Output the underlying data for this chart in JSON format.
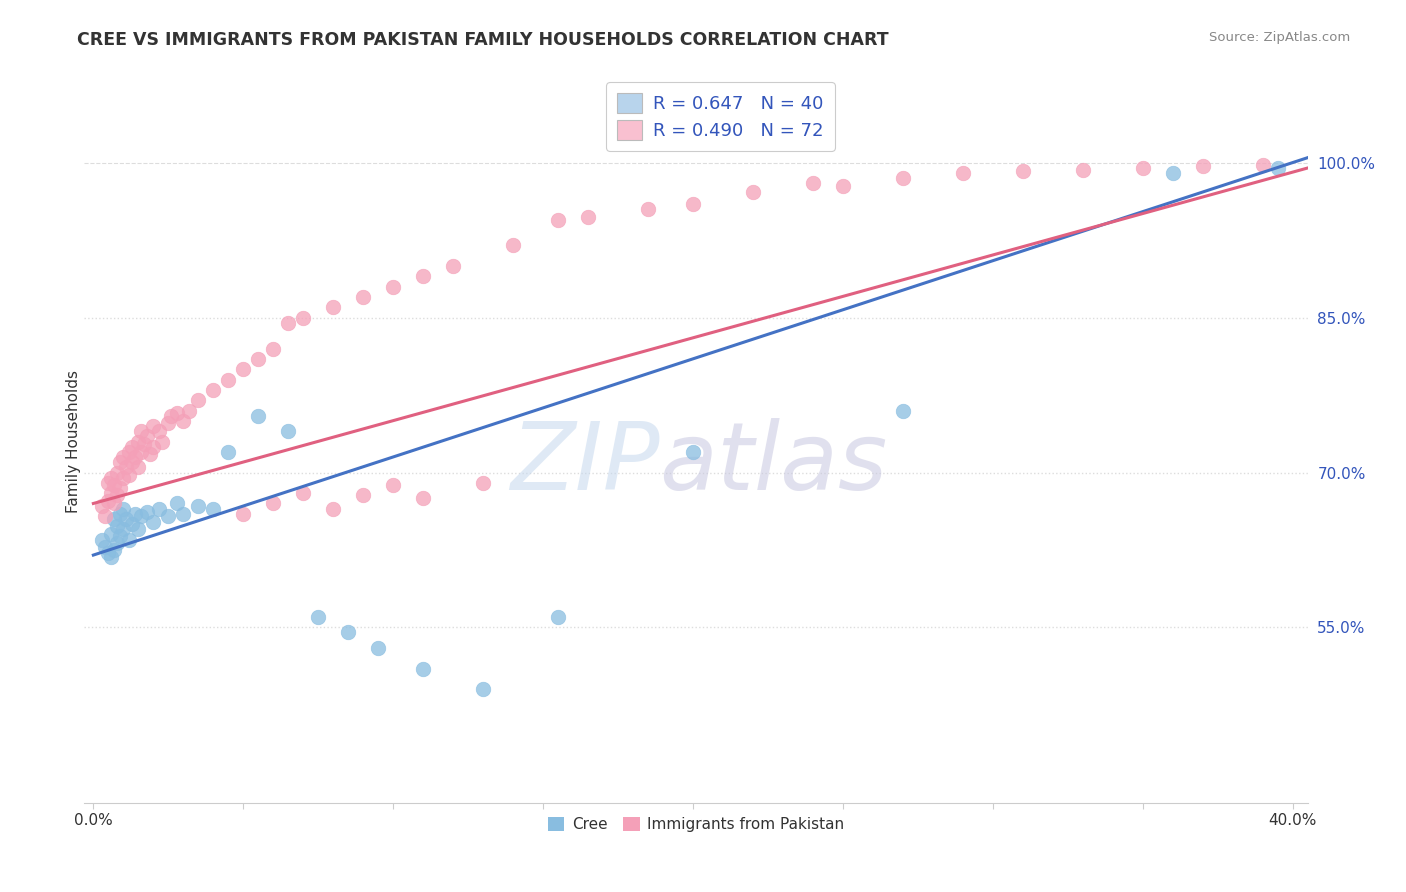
{
  "title": "CREE VS IMMIGRANTS FROM PAKISTAN FAMILY HOUSEHOLDS CORRELATION CHART",
  "source": "Source: ZipAtlas.com",
  "ylabel": "Family Households",
  "R_cree": 0.647,
  "N_cree": 40,
  "R_pak": 0.49,
  "N_pak": 72,
  "cree_color": "#89bde0",
  "pakistan_color": "#f4a0b8",
  "cree_line_color": "#4472c4",
  "pakistan_line_color": "#e06080",
  "legend_box_color_cree": "#b8d4ec",
  "legend_box_color_pak": "#f9c0d0",
  "watermark_zip_color": "#c5d8ee",
  "watermark_atlas_color": "#c8c8e0",
  "grid_color": "#dddddd",
  "title_color": "#333333",
  "source_color": "#888888",
  "axis_label_color": "#333333",
  "right_tick_color": "#3355bb",
  "bottom_tick_color": "#333333",
  "xlim": [
    -0.003,
    0.405
  ],
  "ylim": [
    0.38,
    1.08
  ],
  "ytick_vals": [
    1.0,
    0.85,
    0.7,
    0.55
  ],
  "ytick_labels": [
    "100.0%",
    "85.0%",
    "70.0%",
    "55.0%"
  ],
  "xtick_vals": [
    0.0,
    0.05,
    0.1,
    0.15,
    0.2,
    0.25,
    0.3,
    0.35,
    0.4
  ],
  "xtick_labels": [
    "0.0%",
    "",
    "",
    "",
    "",
    "",
    "",
    "",
    "40.0%"
  ],
  "cree_line_x0": 0.0,
  "cree_line_y0": 0.62,
  "cree_line_x1": 0.405,
  "cree_line_y1": 1.005,
  "pak_line_x0": 0.0,
  "pak_line_y0": 0.67,
  "pak_line_x1": 0.405,
  "pak_line_y1": 0.995,
  "cree_points_x": [
    0.003,
    0.004,
    0.005,
    0.006,
    0.006,
    0.007,
    0.007,
    0.008,
    0.008,
    0.009,
    0.009,
    0.01,
    0.01,
    0.011,
    0.012,
    0.013,
    0.014,
    0.015,
    0.016,
    0.018,
    0.02,
    0.022,
    0.025,
    0.028,
    0.03,
    0.035,
    0.04,
    0.045,
    0.055,
    0.065,
    0.075,
    0.085,
    0.095,
    0.11,
    0.13,
    0.155,
    0.2,
    0.27,
    0.36,
    0.395
  ],
  "cree_points_y": [
    0.635,
    0.628,
    0.622,
    0.618,
    0.64,
    0.625,
    0.655,
    0.632,
    0.648,
    0.638,
    0.66,
    0.645,
    0.665,
    0.655,
    0.635,
    0.65,
    0.66,
    0.645,
    0.658,
    0.662,
    0.652,
    0.665,
    0.658,
    0.67,
    0.66,
    0.668,
    0.665,
    0.72,
    0.755,
    0.74,
    0.56,
    0.545,
    0.53,
    0.51,
    0.49,
    0.56,
    0.72,
    0.76,
    0.99,
    0.995
  ],
  "pak_points_x": [
    0.003,
    0.004,
    0.005,
    0.005,
    0.006,
    0.006,
    0.007,
    0.007,
    0.008,
    0.008,
    0.009,
    0.009,
    0.01,
    0.01,
    0.011,
    0.012,
    0.012,
    0.013,
    0.013,
    0.014,
    0.015,
    0.015,
    0.016,
    0.016,
    0.017,
    0.018,
    0.019,
    0.02,
    0.02,
    0.022,
    0.023,
    0.025,
    0.026,
    0.028,
    0.03,
    0.032,
    0.035,
    0.04,
    0.045,
    0.05,
    0.055,
    0.06,
    0.065,
    0.07,
    0.08,
    0.09,
    0.1,
    0.11,
    0.12,
    0.14,
    0.155,
    0.165,
    0.185,
    0.2,
    0.22,
    0.24,
    0.25,
    0.27,
    0.29,
    0.31,
    0.33,
    0.35,
    0.37,
    0.39,
    0.05,
    0.06,
    0.07,
    0.08,
    0.09,
    0.1,
    0.11,
    0.13
  ],
  "pak_points_y": [
    0.668,
    0.658,
    0.672,
    0.69,
    0.68,
    0.695,
    0.67,
    0.688,
    0.678,
    0.7,
    0.685,
    0.71,
    0.695,
    0.715,
    0.705,
    0.698,
    0.72,
    0.71,
    0.725,
    0.715,
    0.705,
    0.73,
    0.72,
    0.74,
    0.728,
    0.735,
    0.718,
    0.725,
    0.745,
    0.74,
    0.73,
    0.748,
    0.755,
    0.758,
    0.75,
    0.76,
    0.77,
    0.78,
    0.79,
    0.8,
    0.81,
    0.82,
    0.845,
    0.85,
    0.86,
    0.87,
    0.88,
    0.89,
    0.9,
    0.92,
    0.945,
    0.948,
    0.955,
    0.96,
    0.972,
    0.98,
    0.978,
    0.985,
    0.99,
    0.992,
    0.993,
    0.995,
    0.997,
    0.998,
    0.66,
    0.67,
    0.68,
    0.665,
    0.678,
    0.688,
    0.675,
    0.69
  ]
}
